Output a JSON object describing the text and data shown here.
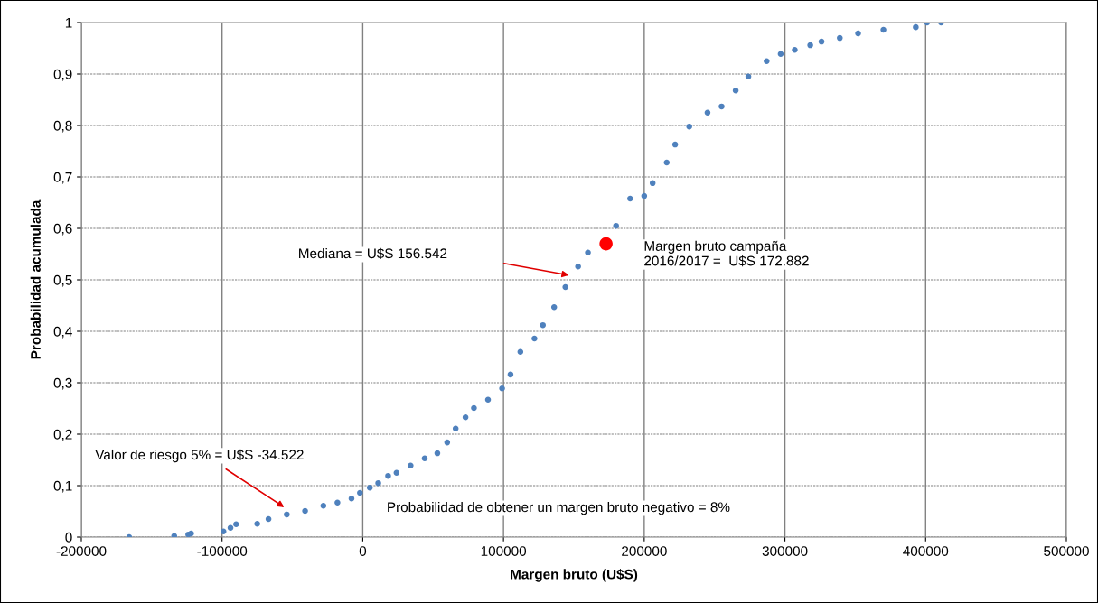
{
  "chart_data": {
    "type": "scatter",
    "xlabel": "Margen bruto (U$S)",
    "ylabel": "Probabilidad acumulada",
    "xlim": [
      -200000,
      500000
    ],
    "ylim": [
      0,
      1
    ],
    "xticks": [
      -200000,
      -100000,
      0,
      100000,
      200000,
      300000,
      400000,
      500000
    ],
    "yticks": [
      0,
      {
        "value": 0.1,
        "label": "0,1"
      },
      {
        "value": 0.2,
        "label": "0,2"
      },
      {
        "value": 0.3,
        "label": "0,3"
      },
      {
        "value": 0.4,
        "label": "0,4"
      },
      {
        "value": 0.5,
        "label": "0,5"
      },
      {
        "value": 0.6,
        "label": "0,6"
      },
      {
        "value": 0.7,
        "label": "0,7"
      },
      {
        "value": 0.8,
        "label": "0,8"
      },
      {
        "value": 0.9,
        "label": "0,9"
      },
      1
    ],
    "grid": true,
    "marker": "circle",
    "series": [
      {
        "color": "#4f81bd",
        "x": [
          -166000,
          -134000,
          -124000,
          -122000,
          -99000,
          -94000,
          -90000,
          -75000,
          -67000,
          -54000,
          -41000,
          -28000,
          -18000,
          -8000,
          -2000,
          5000,
          11000,
          18000,
          24000,
          34000,
          44000,
          53000,
          60000,
          66000,
          73000,
          79000,
          89000,
          99000,
          105000,
          112000,
          122000,
          128000,
          136000,
          144000,
          153000,
          160000,
          170000,
          180000,
          190000,
          200000,
          206000,
          216000,
          222000,
          232000,
          245000,
          255000,
          265000,
          274000,
          287000,
          297000,
          307000,
          318000,
          326000,
          339000,
          352000,
          370000,
          393000,
          401000,
          411000
        ],
        "values": [
          0,
          0.002,
          0.005,
          0.007,
          0.011,
          0.018,
          0.025,
          0.026,
          0.035,
          0.044,
          0.051,
          0.061,
          0.067,
          0.075,
          0.086,
          0.096,
          0.105,
          0.119,
          0.125,
          0.139,
          0.153,
          0.163,
          0.184,
          0.211,
          0.233,
          0.251,
          0.267,
          0.289,
          0.316,
          0.36,
          0.386,
          0.412,
          0.447,
          0.486,
          0.526,
          0.553,
          null,
          0.605,
          0.658,
          0.663,
          0.688,
          0.728,
          0.763,
          0.798,
          0.825,
          0.837,
          0.868,
          0.895,
          0.925,
          0.939,
          0.947,
          0.956,
          0.963,
          0.97,
          0.979,
          0.986,
          0.991,
          1,
          1
        ]
      },
      {
        "color": "#ff0000",
        "x": [
          172882
        ],
        "values": [
          0.57
        ]
      }
    ],
    "annotations": [
      "Mediana = U$S 156.542",
      "Valor de riesgo 5% = U$S -34.522",
      "Margen bruto campaña\n2016/2017 =  U$S 172.882",
      "Probabilidad de obtener un margen bruto negativo = 8%"
    ]
  }
}
